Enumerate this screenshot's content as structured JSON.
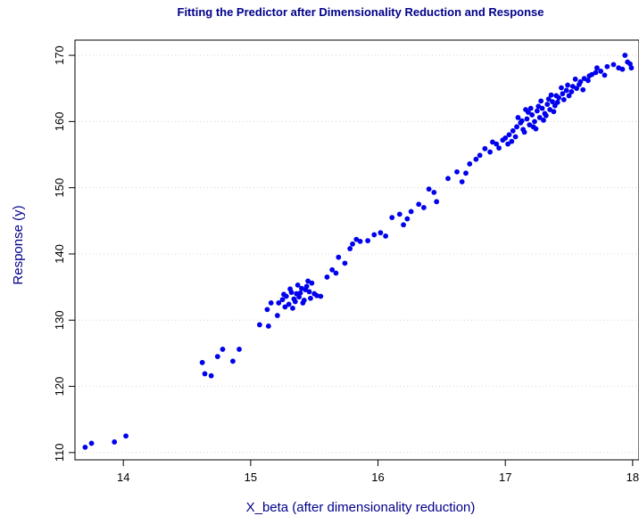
{
  "chart_data": {
    "type": "scatter",
    "title": "Fitting the Predictor after Dimensionality Reduction and Response",
    "xlabel": "X_beta (after dimensionality reduction)",
    "ylabel": "Response (y)",
    "xlim": [
      13.62,
      18.05
    ],
    "ylim": [
      108.9,
      172.3
    ],
    "xticks": [
      14,
      15,
      16,
      17,
      18
    ],
    "yticks": [
      110,
      120,
      130,
      140,
      150,
      160,
      170
    ],
    "grid": "horizontal-dotted",
    "legend": "none",
    "colors": {
      "points": "#0000ee",
      "title": "#00008b",
      "labels": "#00008b",
      "grid": "#d3d3d3"
    },
    "points": [
      [
        13.7,
        110.8
      ],
      [
        13.75,
        111.4
      ],
      [
        13.93,
        111.6
      ],
      [
        14.02,
        112.5
      ],
      [
        14.62,
        123.6
      ],
      [
        14.64,
        121.9
      ],
      [
        14.69,
        121.6
      ],
      [
        14.74,
        124.5
      ],
      [
        14.78,
        125.6
      ],
      [
        14.86,
        123.8
      ],
      [
        14.91,
        125.6
      ],
      [
        15.07,
        129.3
      ],
      [
        15.14,
        129.1
      ],
      [
        15.21,
        130.7
      ],
      [
        15.13,
        131.6
      ],
      [
        15.16,
        132.6
      ],
      [
        15.25,
        133.1
      ],
      [
        15.28,
        133.6
      ],
      [
        15.32,
        134.2
      ],
      [
        15.36,
        134.0
      ],
      [
        15.4,
        134.8
      ],
      [
        15.44,
        135.1
      ],
      [
        15.48,
        135.6
      ],
      [
        15.3,
        132.4
      ],
      [
        15.34,
        133.2
      ],
      [
        15.38,
        133.5
      ],
      [
        15.42,
        133.0
      ],
      [
        15.46,
        134.3
      ],
      [
        15.5,
        134.0
      ],
      [
        15.27,
        132.0
      ],
      [
        15.52,
        133.7
      ],
      [
        15.55,
        133.6
      ],
      [
        15.33,
        131.8
      ],
      [
        15.41,
        132.6
      ],
      [
        15.45,
        135.9
      ],
      [
        15.37,
        135.3
      ],
      [
        15.22,
        132.6
      ],
      [
        15.31,
        134.7
      ],
      [
        15.43,
        134.6
      ],
      [
        15.26,
        133.9
      ],
      [
        15.47,
        133.3
      ],
      [
        15.39,
        134.1
      ],
      [
        15.35,
        132.8
      ],
      [
        15.6,
        136.5
      ],
      [
        15.64,
        137.6
      ],
      [
        15.69,
        139.5
      ],
      [
        15.74,
        138.6
      ],
      [
        15.67,
        137.1
      ],
      [
        15.8,
        141.5
      ],
      [
        15.83,
        142.2
      ],
      [
        15.86,
        141.9
      ],
      [
        15.78,
        140.8
      ],
      [
        15.92,
        142.0
      ],
      [
        15.97,
        142.9
      ],
      [
        16.02,
        143.2
      ],
      [
        16.06,
        142.7
      ],
      [
        16.11,
        145.5
      ],
      [
        16.17,
        146.0
      ],
      [
        16.2,
        144.4
      ],
      [
        16.23,
        145.3
      ],
      [
        16.26,
        146.4
      ],
      [
        16.32,
        147.5
      ],
      [
        16.36,
        147.0
      ],
      [
        16.4,
        149.8
      ],
      [
        16.44,
        149.3
      ],
      [
        16.46,
        147.9
      ],
      [
        16.55,
        151.4
      ],
      [
        16.62,
        152.4
      ],
      [
        16.66,
        150.9
      ],
      [
        16.72,
        153.6
      ],
      [
        16.77,
        154.3
      ],
      [
        16.69,
        152.2
      ],
      [
        16.84,
        155.9
      ],
      [
        16.88,
        155.4
      ],
      [
        16.93,
        156.6
      ],
      [
        16.98,
        157.2
      ],
      [
        17.03,
        158.0
      ],
      [
        17.0,
        157.5
      ],
      [
        17.06,
        158.6
      ],
      [
        17.09,
        159.2
      ],
      [
        17.12,
        159.8
      ],
      [
        17.14,
        158.8
      ],
      [
        17.17,
        160.4
      ],
      [
        17.19,
        159.5
      ],
      [
        17.21,
        161.0
      ],
      [
        17.23,
        160.0
      ],
      [
        17.25,
        161.6
      ],
      [
        17.27,
        160.6
      ],
      [
        17.29,
        162.0
      ],
      [
        17.31,
        161.2
      ],
      [
        17.33,
        162.6
      ],
      [
        17.35,
        161.8
      ],
      [
        17.37,
        163.0
      ],
      [
        17.39,
        162.4
      ],
      [
        17.42,
        163.6
      ],
      [
        17.45,
        164.2
      ],
      [
        17.48,
        164.7
      ],
      [
        17.5,
        163.9
      ],
      [
        17.53,
        165.3
      ],
      [
        17.56,
        165.0
      ],
      [
        17.59,
        166.0
      ],
      [
        17.62,
        166.5
      ],
      [
        17.65,
        166.2
      ],
      [
        17.68,
        167.1
      ],
      [
        17.71,
        167.4
      ],
      [
        17.75,
        167.6
      ],
      [
        17.8,
        168.3
      ],
      [
        17.85,
        168.6
      ],
      [
        17.89,
        168.1
      ],
      [
        17.92,
        167.9
      ],
      [
        17.94,
        170.0
      ],
      [
        17.96,
        169.0
      ],
      [
        17.98,
        168.7
      ],
      [
        17.99,
        168.1
      ],
      [
        17.18,
        161.4
      ],
      [
        17.22,
        159.2
      ],
      [
        17.26,
        162.3
      ],
      [
        17.3,
        160.2
      ],
      [
        17.34,
        163.4
      ],
      [
        17.1,
        160.6
      ],
      [
        17.08,
        157.7
      ],
      [
        17.02,
        156.6
      ],
      [
        17.15,
        158.4
      ],
      [
        17.38,
        161.5
      ],
      [
        17.41,
        162.9
      ],
      [
        17.46,
        163.3
      ],
      [
        17.52,
        164.5
      ],
      [
        17.58,
        165.6
      ],
      [
        17.61,
        164.8
      ],
      [
        17.66,
        166.9
      ],
      [
        17.44,
        165.1
      ],
      [
        17.36,
        164.0
      ],
      [
        17.28,
        163.1
      ],
      [
        17.2,
        162.0
      ],
      [
        17.24,
        158.9
      ],
      [
        17.32,
        160.9
      ],
      [
        17.16,
        161.8
      ],
      [
        17.13,
        160.1
      ],
      [
        17.4,
        163.9
      ],
      [
        17.49,
        165.5
      ],
      [
        16.95,
        156.0
      ],
      [
        16.9,
        156.9
      ],
      [
        16.8,
        154.9
      ],
      [
        17.05,
        157.0
      ],
      [
        17.55,
        166.4
      ],
      [
        17.72,
        168.1
      ],
      [
        17.78,
        167.0
      ]
    ]
  }
}
